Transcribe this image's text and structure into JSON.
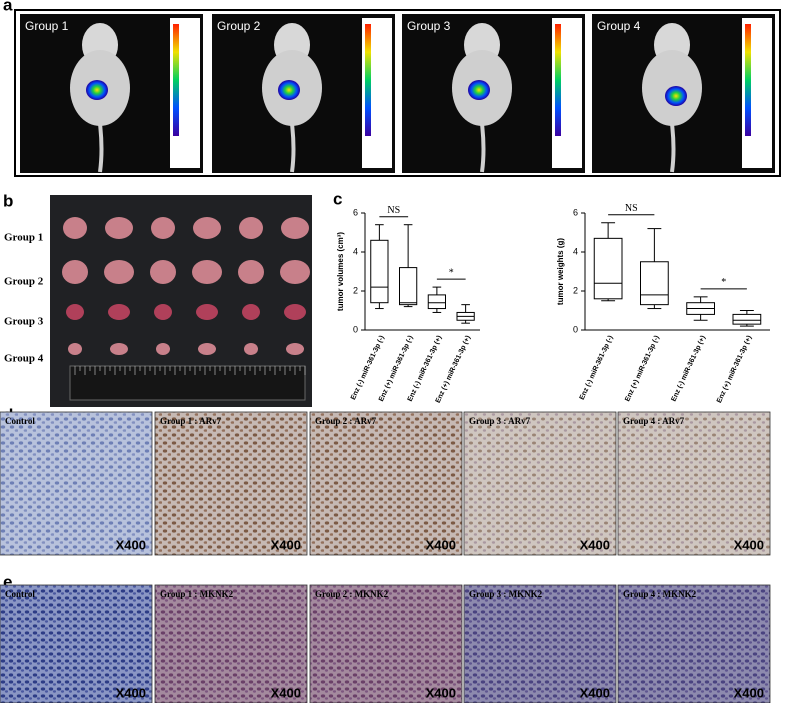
{
  "panel_labels": [
    "a",
    "b",
    "c",
    "d",
    "e"
  ],
  "imaging": {
    "groups": [
      "Group 1",
      "Group 2",
      "Group 3",
      "Group 4"
    ]
  },
  "tumors": {
    "groups": [
      "Group 1",
      "Group 2",
      "Group 3",
      "Group 4"
    ]
  },
  "chart_data": [
    {
      "type": "box",
      "y_label": "tumor volumes (cm³)",
      "categories": [
        "Enz (-) miR-361-3p (-)",
        "Enz (+) miR-361-3p (-)",
        "Enz (-) miR-361-3p (+)",
        "Enz (+) miR-361-3p (+)"
      ],
      "boxes": [
        {
          "min": 1.1,
          "q1": 1.4,
          "median": 2.2,
          "q3": 4.6,
          "max": 5.4
        },
        {
          "min": 1.2,
          "q1": 1.3,
          "median": 1.4,
          "q3": 3.2,
          "max": 5.4
        },
        {
          "min": 0.9,
          "q1": 1.1,
          "median": 1.4,
          "q3": 1.8,
          "max": 2.2
        },
        {
          "min": 0.35,
          "q1": 0.5,
          "median": 0.7,
          "q3": 0.9,
          "max": 1.3
        }
      ],
      "ylim": [
        0,
        6
      ],
      "yticks": [
        0,
        2,
        4,
        6
      ],
      "annotations": [
        "NS",
        "*"
      ]
    },
    {
      "type": "box",
      "y_label": "tumor weights (g)",
      "categories": [
        "Enz (-) miR-361-3p (-)",
        "Enz (+) miR-361-3p (-)",
        "Enz (-) miR-361-3p (+)",
        "Enz (+) miR-361-3p (+)"
      ],
      "boxes": [
        {
          "min": 1.5,
          "q1": 1.6,
          "median": 2.4,
          "q3": 4.7,
          "max": 5.5
        },
        {
          "min": 1.1,
          "q1": 1.3,
          "median": 1.8,
          "q3": 3.5,
          "max": 5.2
        },
        {
          "min": 0.5,
          "q1": 0.8,
          "median": 1.1,
          "q3": 1.4,
          "max": 1.7
        },
        {
          "min": 0.2,
          "q1": 0.3,
          "median": 0.5,
          "q3": 0.8,
          "max": 1.0
        }
      ],
      "ylim": [
        0,
        6
      ],
      "yticks": [
        0,
        2,
        4,
        6
      ],
      "annotations": [
        "NS",
        "*"
      ]
    }
  ],
  "ihc_d": {
    "images": [
      {
        "label": "Control",
        "magnification": "X400"
      },
      {
        "label": "Group 1 : ARv7",
        "magnification": "X400"
      },
      {
        "label": "Group 2 : ARv7",
        "magnification": "X400"
      },
      {
        "label": "Group 3 : ARv7",
        "magnification": "X400"
      },
      {
        "label": "Group 4 : ARv7",
        "magnification": "X400"
      }
    ]
  },
  "ihc_e": {
    "images": [
      {
        "label": "Control",
        "magnification": "X400"
      },
      {
        "label": "Group 1 : MKNK2",
        "magnification": "X400"
      },
      {
        "label": "Group 2 : MKNK2",
        "magnification": "X400"
      },
      {
        "label": "Group 3 : MKNK2",
        "magnification": "X400"
      },
      {
        "label": "Group 4 : MKNK2",
        "magnification": "X400"
      }
    ]
  }
}
